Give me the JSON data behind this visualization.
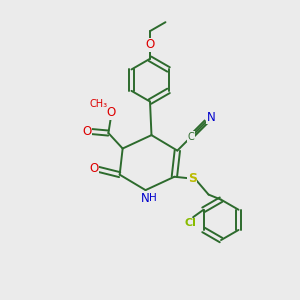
{
  "bg_color": "#ebebeb",
  "bond_color": "#2d6b2d",
  "atom_colors": {
    "O": "#dd0000",
    "N": "#0000cc",
    "S": "#bbbb00",
    "Cl": "#88bb00",
    "C": "#2d6b2d"
  },
  "lw": 1.4
}
